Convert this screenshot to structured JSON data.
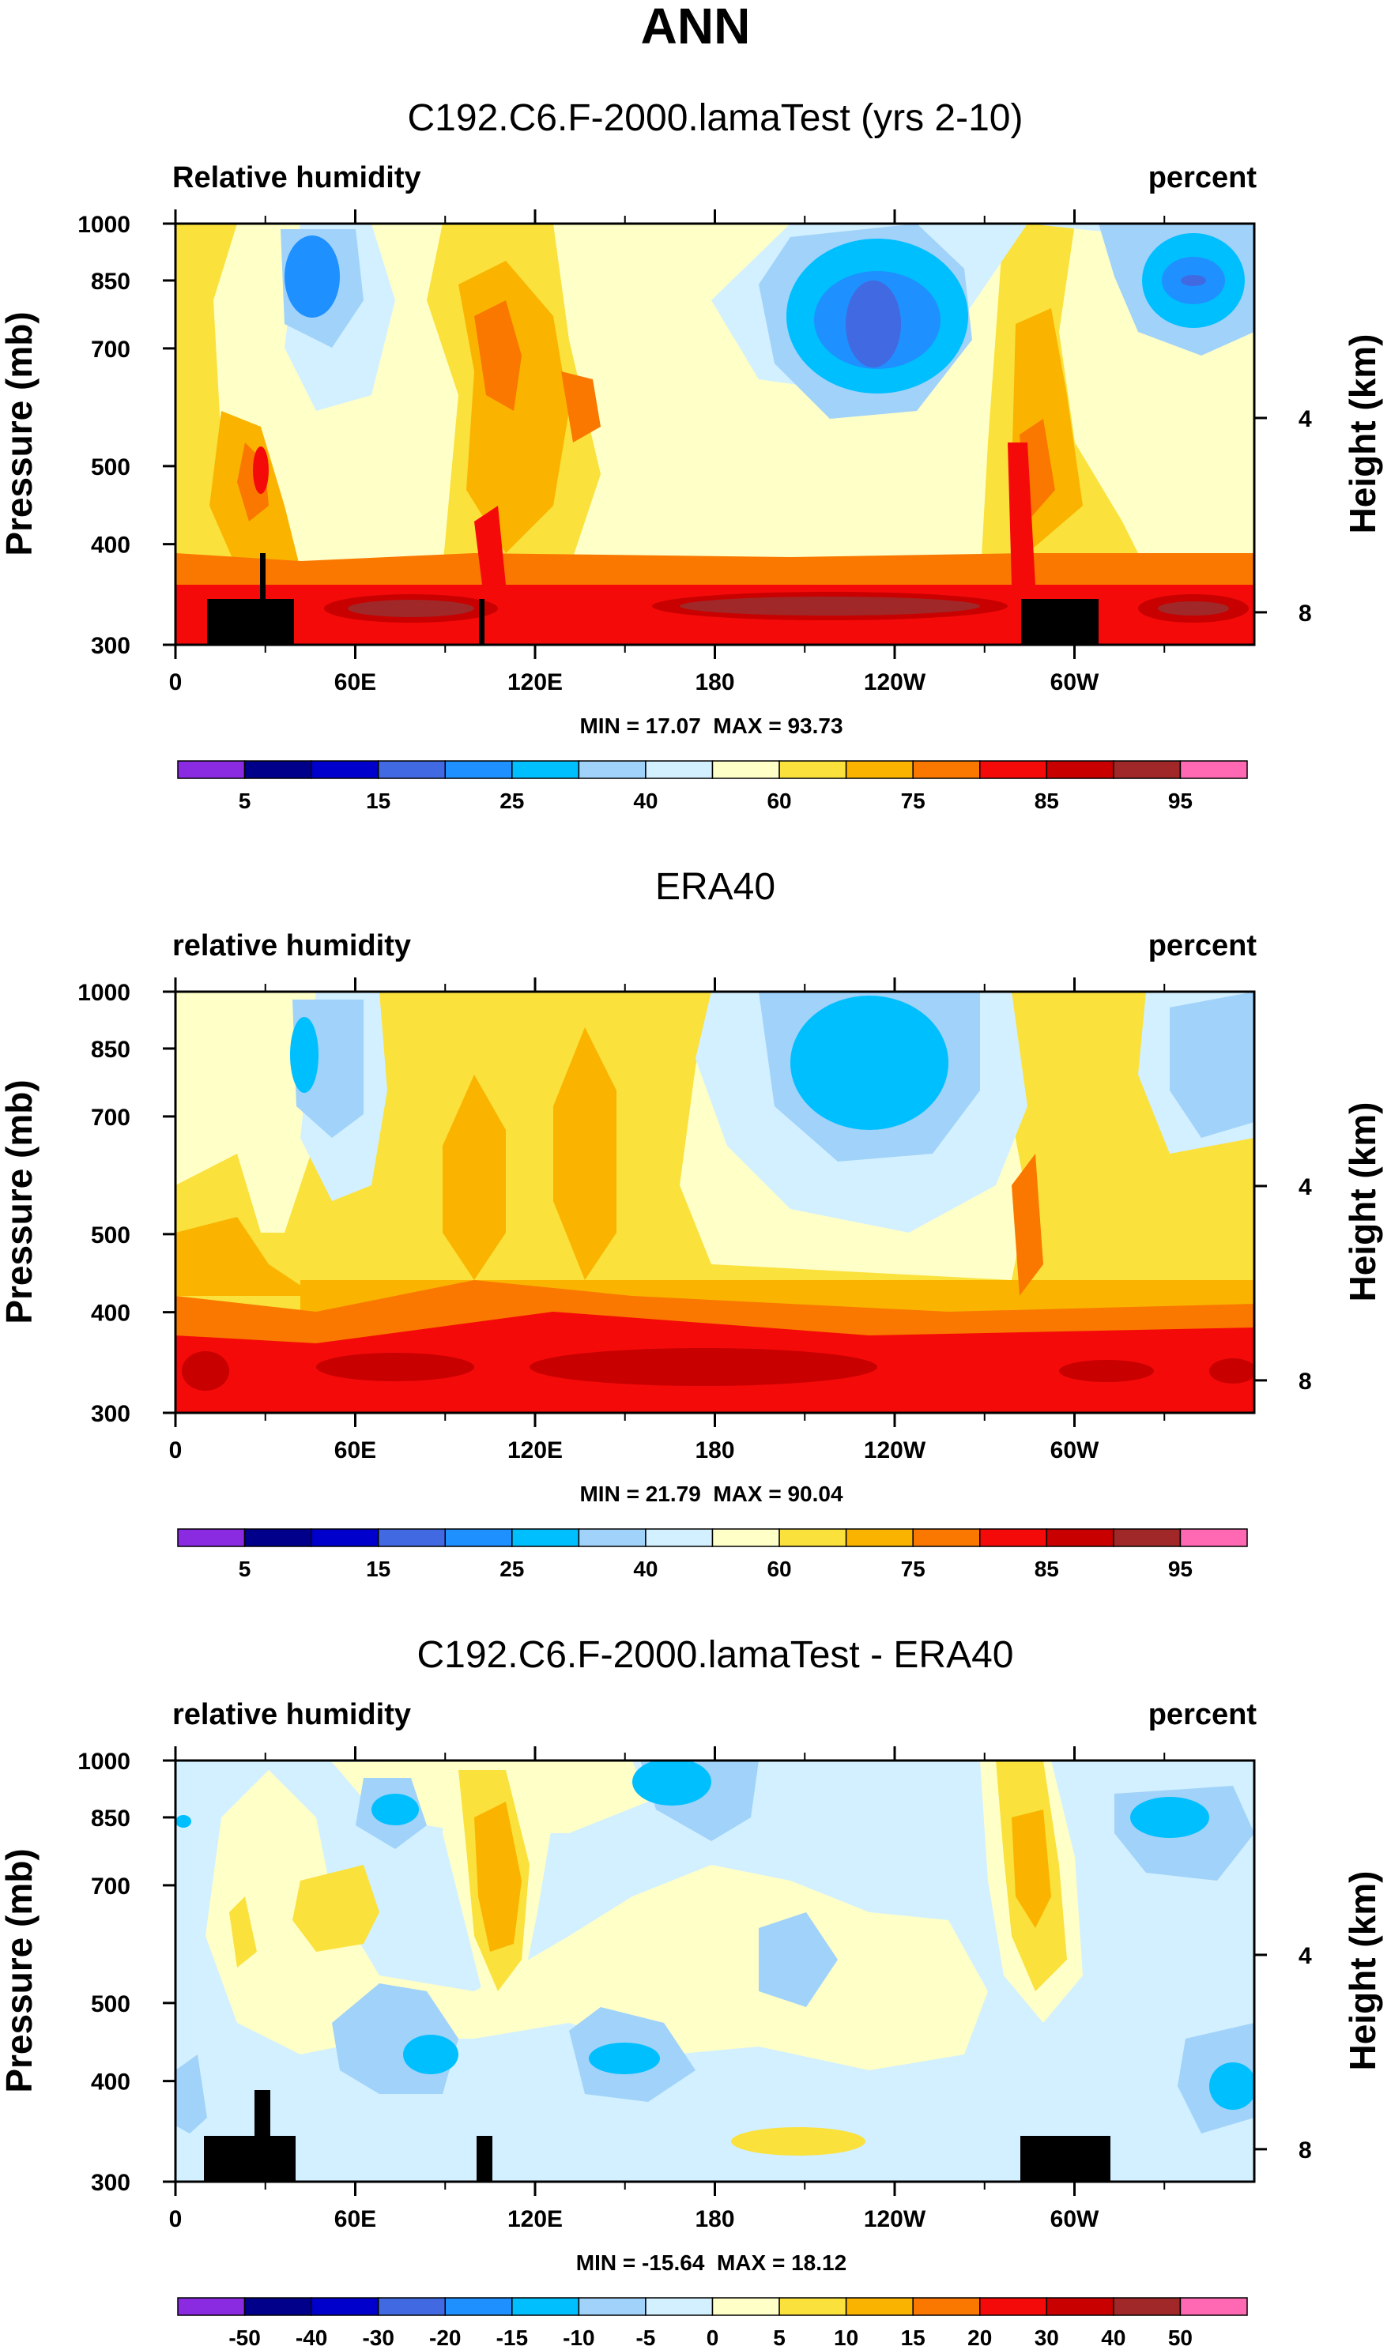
{
  "page": {
    "title": "ANN"
  },
  "colorbar_fills": [
    "#8a2be2",
    "#00008b",
    "#0000cd",
    "#4169e1",
    "#1e90ff",
    "#00bfff",
    "#a0d2fa",
    "#d2f0ff",
    "#ffffc8",
    "#fae13c",
    "#fab400",
    "#fa7800",
    "#f50a0a",
    "#c80000",
    "#a02828",
    "#ff69b4"
  ],
  "chart_data": [
    {
      "type": "heatmap",
      "title": "C192.C6.F-2000.lamaTest (yrs 2-10)",
      "left_label": "Relative humidity",
      "right_label": "percent",
      "ylabel": "Pressure (mb)",
      "ylabel_right": "Height (km)",
      "x_ticks": [
        "0",
        "60E",
        "120E",
        "180",
        "120W",
        "60W"
      ],
      "y_ticks": [
        "300",
        "400",
        "500",
        "700",
        "850",
        "1000"
      ],
      "y_right_ticks": [
        "8",
        "4"
      ],
      "stats": "MIN = 17.07  MAX = 93.73",
      "colorbar_labels": [
        "5",
        "15",
        "25",
        "40",
        "60",
        "75",
        "85",
        "95"
      ],
      "xlim": [
        0,
        360
      ],
      "ylim_mb": [
        1000,
        300
      ]
    },
    {
      "type": "heatmap",
      "title": "ERA40",
      "left_label": "relative humidity",
      "right_label": "percent",
      "ylabel": "Pressure (mb)",
      "ylabel_right": "Height (km)",
      "x_ticks": [
        "0",
        "60E",
        "120E",
        "180",
        "120W",
        "60W"
      ],
      "y_ticks": [
        "300",
        "400",
        "500",
        "700",
        "850",
        "1000"
      ],
      "y_right_ticks": [
        "8",
        "4"
      ],
      "stats": "MIN = 21.79  MAX = 90.04",
      "colorbar_labels": [
        "5",
        "15",
        "25",
        "40",
        "60",
        "75",
        "85",
        "95"
      ],
      "xlim": [
        0,
        360
      ],
      "ylim_mb": [
        1000,
        300
      ]
    },
    {
      "type": "heatmap",
      "title": "C192.C6.F-2000.lamaTest - ERA40",
      "left_label": "relative humidity",
      "right_label": "percent",
      "ylabel": "Pressure (mb)",
      "ylabel_right": "Height (km)",
      "x_ticks": [
        "0",
        "60E",
        "120E",
        "180",
        "120W",
        "60W"
      ],
      "y_ticks": [
        "300",
        "400",
        "500",
        "700",
        "850",
        "1000"
      ],
      "y_right_ticks": [
        "8",
        "4"
      ],
      "stats": "MIN = -15.64  MAX = 18.12",
      "colorbar_labels": [
        "-50",
        "-40",
        "-30",
        "-20",
        "-15",
        "-10",
        "-5",
        "0",
        "5",
        "10",
        "15",
        "20",
        "30",
        "40",
        "50"
      ],
      "xlim": [
        0,
        360
      ],
      "ylim_mb": [
        1000,
        300
      ]
    }
  ]
}
